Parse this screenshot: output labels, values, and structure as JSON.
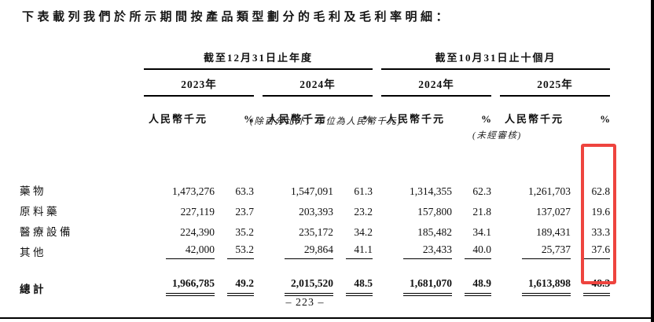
{
  "title": "下表載列我們於所示期間按產品類型劃分的毛利及毛利率明細：",
  "table": {
    "groups": [
      {
        "label": "截至12月31日止年度",
        "years": [
          "2023年",
          "2024年"
        ]
      },
      {
        "label": "截至10月31日止十個月",
        "years": [
          "2024年",
          "2025年"
        ]
      }
    ],
    "unit_header": "人民幣千元",
    "pct_header": "%",
    "note_units": "(除百分比外，單位為人民幣千元)",
    "note_unaudited": "(未經審核)",
    "rows": [
      {
        "label": "藥物",
        "values": [
          "1,473,276",
          "63.3",
          "1,547,091",
          "61.3",
          "1,314,355",
          "62.3",
          "1,261,703",
          "62.8"
        ]
      },
      {
        "label": "原料藥",
        "values": [
          "227,119",
          "23.7",
          "203,393",
          "23.2",
          "157,800",
          "21.8",
          "137,027",
          "19.6"
        ]
      },
      {
        "label": "醫療設備",
        "values": [
          "224,390",
          "35.2",
          "235,172",
          "34.2",
          "185,482",
          "34.1",
          "189,431",
          "33.3"
        ]
      },
      {
        "label": "其他",
        "values": [
          "42,000",
          "53.2",
          "29,864",
          "41.1",
          "23,433",
          "40.0",
          "25,737",
          "37.6"
        ]
      }
    ],
    "total": {
      "label": "總計",
      "values": [
        "1,966,785",
        "49.2",
        "2,015,520",
        "48.5",
        "1,681,070",
        "48.9",
        "1,613,898",
        "48.3"
      ]
    }
  },
  "page_number": "– 223 –",
  "highlight": {
    "color": "#ee443e"
  }
}
